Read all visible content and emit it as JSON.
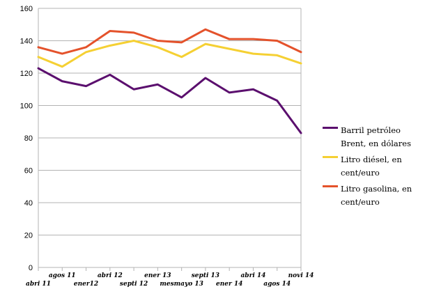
{
  "chart_data": {
    "type": "line",
    "title": "",
    "xlabel": "",
    "ylabel": "",
    "ylim": [
      0,
      160
    ],
    "yticks": [
      0,
      20,
      40,
      60,
      80,
      100,
      120,
      140,
      160
    ],
    "grid": true,
    "legend_position": "right",
    "categories": [
      "abri 11",
      "agos 11",
      "ener12",
      "abri 12",
      "septi 12",
      "ener 13",
      "mesmayo 13",
      "septi 13",
      "ener 14",
      "abri 14",
      "agos 14",
      "novi 14"
    ],
    "series": [
      {
        "name": "Barril petróleo Brent, en dólares",
        "color": "#5b0f6e",
        "values": [
          123,
          115,
          112,
          119,
          110,
          113,
          105,
          117,
          108,
          110,
          103,
          83
        ]
      },
      {
        "name": "Litro diésel, en cent/euro",
        "color": "#f5d033",
        "values": [
          130,
          124,
          133,
          137,
          140,
          136,
          130,
          138,
          135,
          132,
          131,
          126
        ]
      },
      {
        "name": "Litro gasolina, en cent/euro",
        "color": "#e4522b",
        "values": [
          136,
          132,
          136,
          146,
          145,
          140,
          139,
          147,
          141,
          141,
          140,
          133
        ]
      }
    ]
  }
}
